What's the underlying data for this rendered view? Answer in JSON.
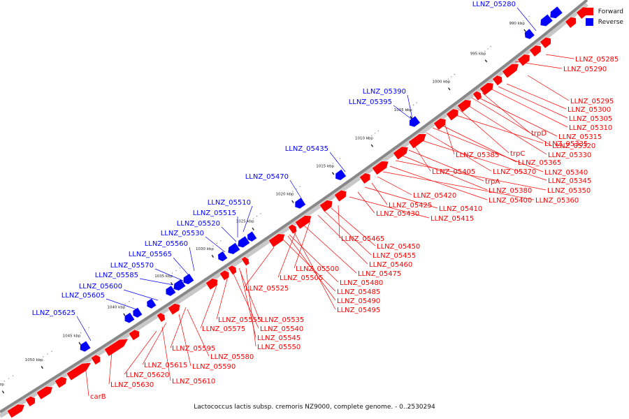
{
  "caption": "Lactococcus lactis subsp. cremoris NZ9000, complete genome. - 0..2530294",
  "legend": [
    {
      "label": "Forward",
      "color": "#ff0000"
    },
    {
      "label": "Reverse",
      "color": "#0000ff"
    }
  ],
  "colors": {
    "forward": "#ff0000",
    "reverse": "#0000ff",
    "axis": "#888888",
    "tick": "#222222"
  },
  "axis_ticks_kbp": [
    "990 kbp",
    "995 kbp",
    "1000 kbp",
    "1005 kbp",
    "1010 kbp",
    "1015 kbp",
    "1020 kbp",
    "1025 kbp",
    "1030 kbp",
    "1035 kbp",
    "1040 kbp",
    "1045 kbp",
    "1050 kbp",
    "1055 kbp"
  ],
  "forward_labels": [
    "LLNZ_05285",
    "LLNZ_05290",
    "LLNZ_05295",
    "LLNZ_05300",
    "LLNZ_05305",
    "LLNZ_05310",
    "trpD",
    "LLNZ_05315",
    "LLNZ_05320",
    "LLNZ_05330",
    "trpC",
    "LLNZ_05335",
    "LLNZ_05385",
    "LLNZ_05365",
    "LLNZ_05340",
    "LLNZ_05370",
    "LLNZ_05345",
    "LLNZ_05405",
    "trpA",
    "LLNZ_05380",
    "LLNZ_05350",
    "LLNZ_05400",
    "LLNZ_05360",
    "LLNZ_05420",
    "LLNZ_05425",
    "LLNZ_05410",
    "LLNZ_05430",
    "LLNZ_05415",
    "LLNZ_05465",
    "LLNZ_05450",
    "LLNZ_05455",
    "LLNZ_05460",
    "LLNZ_05500",
    "LLNZ_05475",
    "LLNZ_05505",
    "LLNZ_05480",
    "LLNZ_05525",
    "LLNZ_05485",
    "LLNZ_05490",
    "LLNZ_05495",
    "LLNZ_05535",
    "LLNZ_05555",
    "LLNZ_05575",
    "LLNZ_05540",
    "LLNZ_05545",
    "LLNZ_05550",
    "LLNZ_05595",
    "LLNZ_05580",
    "LLNZ_05615",
    "LLNZ_05590",
    "LLNZ_05620",
    "LLNZ_05610",
    "LLNZ_05630",
    "carB"
  ],
  "reverse_labels": [
    "LLNZ_05280",
    "LLNZ_05390",
    "LLNZ_05395",
    "LLNZ_05435",
    "LLNZ_05470",
    "LLNZ_05510",
    "LLNZ_05515",
    "LLNZ_05520",
    "LLNZ_05530",
    "LLNZ_05560",
    "LLNZ_05565",
    "LLNZ_05570",
    "LLNZ_05585",
    "LLNZ_05600",
    "LLNZ_05605",
    "LLNZ_05625"
  ]
}
